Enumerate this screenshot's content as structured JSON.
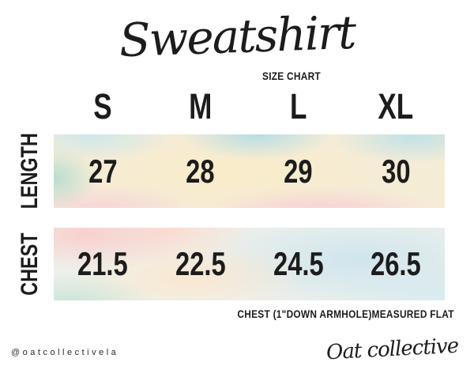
{
  "chart_data": {
    "type": "table",
    "title": "Sweatshirt",
    "subtitle": "SIZE CHART",
    "columns": [
      "S",
      "M",
      "L",
      "XL"
    ],
    "rows": [
      {
        "label": "LENGTH",
        "values": [
          27,
          28,
          29,
          30
        ]
      },
      {
        "label": "CHEST",
        "values": [
          21.5,
          22.5,
          24.5,
          26.5
        ]
      }
    ],
    "footnote": "CHEST (1\"DOWN ARMHOLE)MEASURED FLAT",
    "layout_hints": {
      "row_label_orientation": "rotated-90-ccw",
      "row_band_style": "pastel-watercolor",
      "grid": "off"
    }
  },
  "footer": {
    "handle": "@oatcollectivela",
    "brand": "Oat collective"
  },
  "colors": {
    "text": "#1c1c1c",
    "background": "#ffffff",
    "watercolor_blue": "#cfe6ec",
    "watercolor_cream": "#f9ecca",
    "watercolor_pink": "#f7d0d8",
    "watercolor_mint": "#bfe2d6",
    "watercolor_peach": "#f9d6cc"
  }
}
